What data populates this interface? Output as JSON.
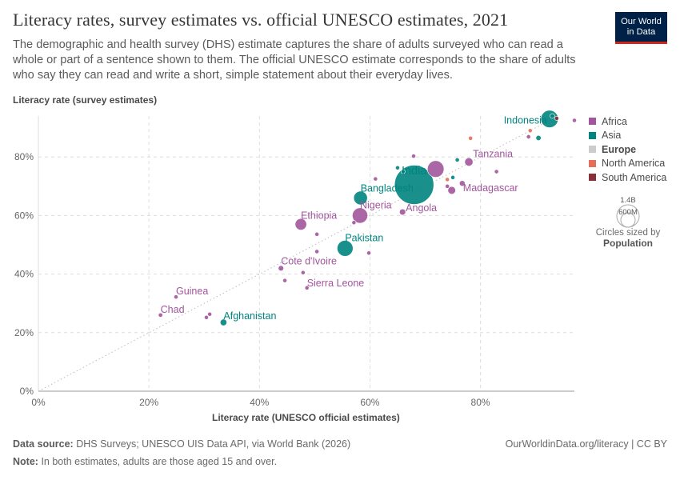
{
  "header": {
    "title": "Literacy rates, survey estimates vs. official UNESCO estimates, 2021",
    "subtitle": "The demographic and health survey (DHS) estimate captures the share of adults surveyed who can read a whole or part of a sentence shown to them. The official UNESCO estimate corresponds to the share of adults who say they can read and write a short, simple statement about their everyday lives.",
    "logo_line1": "Our World",
    "logo_line2": "in Data"
  },
  "legend": {
    "items": [
      {
        "label": "Africa",
        "color": "#a2559c"
      },
      {
        "label": "Asia",
        "color": "#00847e"
      },
      {
        "label": "Europe",
        "color": "#cccccc"
      },
      {
        "label": "North America",
        "color": "#e56e5a"
      },
      {
        "label": "South America",
        "color": "#883039"
      }
    ],
    "highlighted": "Europe",
    "size_values": [
      "1.4B",
      "600M"
    ],
    "size_caption": "Circles sized by",
    "size_variable": "Population"
  },
  "footer": {
    "source_label": "Data source:",
    "source_text": "DHS Surveys; UNESCO UIS Data API, via World Bank (2026)",
    "right_text": "OurWorldinData.org/literacy | CC BY",
    "note_label": "Note:",
    "note_text": "In both estimates, adults are those aged 15 and over."
  },
  "chart_data": {
    "type": "scatter",
    "title": "Literacy rates, survey estimates vs. official UNESCO estimates, 2021",
    "xlabel": "Literacy rate (UNESCO official estimates)",
    "ylabel": "Literacy rate (survey estimates)",
    "xlim": [
      0,
      97
    ],
    "ylim": [
      0,
      94
    ],
    "x_ticks": [
      0,
      20,
      40,
      60,
      80
    ],
    "y_ticks": [
      0,
      20,
      40,
      60,
      80
    ],
    "x_tick_labels": [
      "0%",
      "20%",
      "40%",
      "60%",
      "80%"
    ],
    "y_tick_labels": [
      "0%",
      "20%",
      "40%",
      "60%",
      "80%"
    ],
    "grid": true,
    "reference_line": "y = x",
    "points": [
      {
        "label": "India",
        "x": 68,
        "y": 70.5,
        "continent": "Asia",
        "pop_m": 1400
      },
      {
        "label": "Indonesia",
        "x": 92.5,
        "y": 93,
        "continent": "Asia",
        "pop_m": 275
      },
      {
        "label": "Bangladesh",
        "x": 58.3,
        "y": 66,
        "continent": "Asia",
        "pop_m": 170
      },
      {
        "label": "Pakistan",
        "x": 55.5,
        "y": 48.8,
        "continent": "Asia",
        "pop_m": 230
      },
      {
        "label": "Afghanistan",
        "x": 33.5,
        "y": 23.5,
        "continent": "Asia",
        "pop_m": 40
      },
      {
        "label": "Nigeria",
        "x": 58.2,
        "y": 60,
        "continent": "Africa",
        "pop_m": 215
      },
      {
        "label": "Ethiopia",
        "x": 47.5,
        "y": 57,
        "continent": "Africa",
        "pop_m": 120
      },
      {
        "label": "Tanzania",
        "x": 77.9,
        "y": 78.3,
        "continent": "Africa",
        "pop_m": 63
      },
      {
        "label": "Madagascar",
        "x": 76.7,
        "y": 71,
        "continent": "Africa",
        "pop_m": 29
      },
      {
        "label": "Angola",
        "x": 65.9,
        "y": 61.2,
        "continent": "Africa",
        "pop_m": 35
      },
      {
        "label": "Cote d'Ivoire",
        "x": 43.9,
        "y": 42,
        "continent": "Africa",
        "pop_m": 27
      },
      {
        "label": "Sierra Leone",
        "x": 48.6,
        "y": 35.3,
        "continent": "Africa",
        "pop_m": 8
      },
      {
        "label": "Guinea",
        "x": 24.9,
        "y": 32.2,
        "continent": "Africa",
        "pop_m": 13
      },
      {
        "label": "Chad",
        "x": 22.1,
        "y": 26,
        "continent": "Africa",
        "pop_m": 17
      },
      {
        "label": "",
        "x": 71.9,
        "y": 75.9,
        "continent": "Africa",
        "pop_m": 250
      },
      {
        "label": "",
        "x": 74.8,
        "y": 68.6,
        "continent": "Africa",
        "pop_m": 55
      },
      {
        "label": "",
        "x": 50.4,
        "y": 53.6,
        "continent": "Africa",
        "pop_m": 15
      },
      {
        "label": "",
        "x": 50.4,
        "y": 47.7,
        "continent": "Africa",
        "pop_m": 12
      },
      {
        "label": "",
        "x": 59.8,
        "y": 47.2,
        "continent": "Africa",
        "pop_m": 10
      },
      {
        "label": "",
        "x": 44.6,
        "y": 37.8,
        "continent": "Africa",
        "pop_m": 8
      },
      {
        "label": "",
        "x": 47.9,
        "y": 40.5,
        "continent": "Africa",
        "pop_m": 7
      },
      {
        "label": "",
        "x": 30.4,
        "y": 25.2,
        "continent": "Africa",
        "pop_m": 13
      },
      {
        "label": "",
        "x": 31.0,
        "y": 26.3,
        "continent": "Africa",
        "pop_m": 10
      },
      {
        "label": "",
        "x": 57.1,
        "y": 57.6,
        "continent": "Africa",
        "pop_m": 6
      },
      {
        "label": "",
        "x": 61.0,
        "y": 72.5,
        "continent": "Africa",
        "pop_m": 8
      },
      {
        "label": "",
        "x": 67.9,
        "y": 80.3,
        "continent": "Africa",
        "pop_m": 8
      },
      {
        "label": "",
        "x": 74.0,
        "y": 70.0,
        "continent": "Africa",
        "pop_m": 8
      },
      {
        "label": "",
        "x": 82.9,
        "y": 75.0,
        "continent": "Africa",
        "pop_m": 8
      },
      {
        "label": "",
        "x": 88.7,
        "y": 86.9,
        "continent": "Africa",
        "pop_m": 8
      },
      {
        "label": "",
        "x": 97.0,
        "y": 92.5,
        "continent": "Africa",
        "pop_m": 8
      },
      {
        "label": "",
        "x": 90.5,
        "y": 86.5,
        "continent": "Asia",
        "pop_m": 25
      },
      {
        "label": "",
        "x": 65.0,
        "y": 76.3,
        "continent": "Asia",
        "pop_m": 8
      },
      {
        "label": "",
        "x": 66.0,
        "y": 75.0,
        "continent": "Asia",
        "pop_m": 10
      },
      {
        "label": "",
        "x": 75.0,
        "y": 73.0,
        "continent": "Asia",
        "pop_m": 6
      },
      {
        "label": "",
        "x": 75.8,
        "y": 79.0,
        "continent": "Asia",
        "pop_m": 6
      },
      {
        "label": "",
        "x": 93.0,
        "y": 94.0,
        "continent": "Asia",
        "pop_m": 20
      },
      {
        "label": "",
        "x": 78.2,
        "y": 86.4,
        "continent": "North America",
        "pop_m": 6
      },
      {
        "label": "",
        "x": 74.0,
        "y": 72.3,
        "continent": "North America",
        "pop_m": 6
      },
      {
        "label": "",
        "x": 89.0,
        "y": 89.0,
        "continent": "North America",
        "pop_m": 6
      },
      {
        "label": "",
        "x": 93.8,
        "y": 93.2,
        "continent": "South America",
        "pop_m": 12
      }
    ]
  }
}
